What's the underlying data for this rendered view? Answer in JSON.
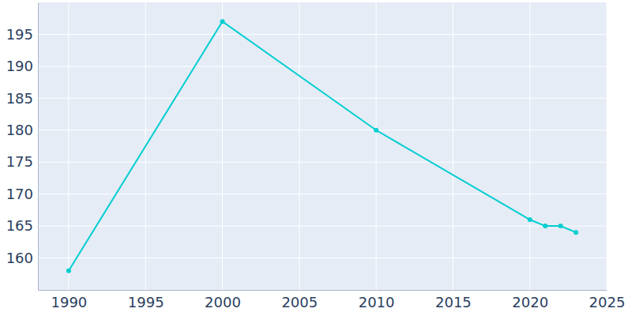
{
  "chart_data": {
    "type": "line",
    "x": [
      1990,
      2000,
      2010,
      2020,
      2021,
      2022,
      2023
    ],
    "values": [
      158,
      197,
      180,
      166,
      165,
      165,
      164
    ],
    "color": "#00ced1",
    "marker": "circle",
    "xlim": [
      1988,
      2025
    ],
    "xticks": [
      1990,
      1995,
      2000,
      2005,
      2010,
      2015,
      2020,
      2025
    ],
    "ylim": [
      155,
      200
    ],
    "yticks": [
      160,
      165,
      170,
      175,
      180,
      185,
      190,
      195
    ],
    "grid": true
  }
}
